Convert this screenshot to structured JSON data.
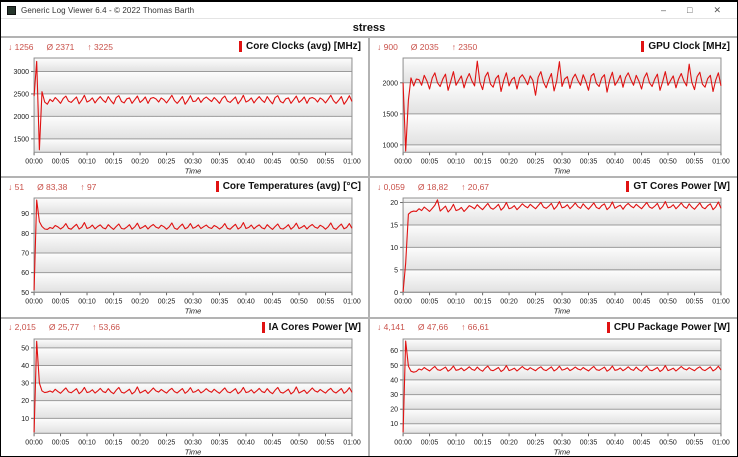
{
  "window": {
    "title": "Generic Log Viewer 6.4 - © 2022 Thomas Barth",
    "controls": {
      "minimize": "–",
      "maximize": "□",
      "close": "✕"
    }
  },
  "header": {
    "title": "stress"
  },
  "colors": {
    "accent_red": "#e01212",
    "stats_red": "#c9514a",
    "grid_line": "#9b9b9b",
    "divider": "#b3b3b3"
  },
  "axis": {
    "time_label": "Time",
    "x_ticks": [
      "00:00",
      "00:05",
      "00:10",
      "00:15",
      "00:20",
      "00:25",
      "00:30",
      "00:35",
      "00:40",
      "00:45",
      "00:50",
      "00:55",
      "01:00"
    ]
  },
  "chart_data": [
    {
      "type": "line",
      "title": "Core Clocks (avg) [MHz]",
      "stats": {
        "min": "↓ 1256",
        "avg": "Ø 2371",
        "max": "↑ 3225"
      },
      "ylim": [
        1200,
        3300
      ],
      "yticks": [
        1500,
        2000,
        2500,
        3000
      ],
      "x_range_minutes": [
        0,
        60
      ],
      "values": [
        2450,
        3225,
        1256,
        2550,
        2320,
        2270,
        2380,
        2330,
        2420,
        2360,
        2290,
        2400,
        2450,
        2340,
        2310,
        2370,
        2430,
        2280,
        2360,
        2470,
        2320,
        2350,
        2410,
        2300,
        2380,
        2440,
        2360,
        2310,
        2440,
        2350,
        2280,
        2420,
        2460,
        2330,
        2300,
        2390,
        2410,
        2290,
        2370,
        2450,
        2310,
        2360,
        2430,
        2290,
        2400,
        2420,
        2390,
        2320,
        2410,
        2370,
        2300,
        2380,
        2470,
        2350,
        2290,
        2360,
        2440,
        2270,
        2350,
        2460,
        2330,
        2340,
        2420,
        2310,
        2390,
        2430,
        2380,
        2330,
        2420,
        2360,
        2290,
        2400,
        2450,
        2340,
        2310,
        2370,
        2430,
        2280,
        2360,
        2470,
        2320,
        2350,
        2410,
        2300,
        2380,
        2440,
        2360,
        2310,
        2440,
        2350,
        2280,
        2420,
        2460,
        2330,
        2300,
        2390,
        2410,
        2290,
        2370,
        2450,
        2310,
        2360,
        2430,
        2290,
        2400,
        2420,
        2390,
        2320,
        2410,
        2370,
        2300,
        2380,
        2470,
        2350,
        2290,
        2360,
        2440,
        2270,
        2350,
        2460,
        2330
      ]
    },
    {
      "type": "line",
      "title": "GPU Clock [MHz]",
      "stats": {
        "min": "↓ 900",
        "avg": "Ø 2035",
        "max": "↑ 2350"
      },
      "ylim": [
        880,
        2400
      ],
      "yticks": [
        1000,
        1500,
        2000
      ],
      "x_range_minutes": [
        0,
        60
      ],
      "values": [
        2000,
        900,
        1720,
        2080,
        1950,
        2060,
        2050,
        1960,
        2120,
        2030,
        1900,
        2080,
        2160,
        2000,
        1940,
        2060,
        2140,
        1880,
        2020,
        2180,
        1960,
        2040,
        2110,
        1920,
        2060,
        2150,
        2030,
        1950,
        2350,
        2010,
        1890,
        2100,
        2170,
        1980,
        1930,
        2070,
        2120,
        1860,
        2040,
        2160,
        1950,
        2050,
        2090,
        1900,
        2080,
        2130,
        2060,
        1970,
        2110,
        2040,
        1800,
        2090,
        2180,
        2010,
        1920,
        2050,
        2150,
        1870,
        2030,
        2340,
        1940,
        2060,
        2100,
        1910,
        2070,
        2140,
        2040,
        1960,
        2130,
        2020,
        1880,
        2110,
        2150,
        1990,
        1940,
        2080,
        2130,
        1850,
        2050,
        2170,
        1960,
        2030,
        2120,
        1930,
        2090,
        2160,
        2050,
        1960,
        2120,
        2030,
        1900,
        2080,
        2160,
        2000,
        1940,
        2060,
        2140,
        1880,
        2020,
        2180,
        1960,
        2040,
        2110,
        1920,
        2060,
        2150,
        2030,
        1950,
        2300,
        2010,
        1890,
        2100,
        2170,
        1980,
        1930,
        2070,
        2120,
        1860,
        2040,
        2160,
        1950
      ]
    },
    {
      "type": "line",
      "title": "Core Temperatures (avg) [°C]",
      "stats": {
        "min": "↓ 51",
        "avg": "Ø 83,38",
        "max": "↑ 97"
      },
      "ylim": [
        50,
        98
      ],
      "yticks": [
        50,
        60,
        70,
        80,
        90
      ],
      "x_range_minutes": [
        0,
        60
      ],
      "values": [
        51,
        97,
        86,
        83.5,
        82.2,
        82,
        83,
        82.5,
        84,
        83.3,
        82.2,
        83.2,
        85,
        82.6,
        82.1,
        83.4,
        84.6,
        82.2,
        83.1,
        85.5,
        82.5,
        83,
        84.2,
        82.3,
        83.5,
        84.3,
        82.8,
        82.3,
        84.4,
        83.1,
        82,
        83.5,
        84.8,
        82.5,
        82.2,
        83.2,
        84.4,
        82.1,
        83.3,
        85.2,
        82.4,
        83.1,
        84,
        82.2,
        83.6,
        84.5,
        83.2,
        82.6,
        84.1,
        83.4,
        82.1,
        83.3,
        85.3,
        82.7,
        82,
        83.5,
        84.7,
        82.3,
        83,
        85,
        82.6,
        83.2,
        84.3,
        82.4,
        83.4,
        84.2,
        83,
        82.5,
        84,
        83.3,
        82.2,
        83.2,
        85,
        82.6,
        82.1,
        83.4,
        84.6,
        82.2,
        83.1,
        85.5,
        82.5,
        83,
        84.2,
        82.3,
        83.5,
        84.3,
        82.8,
        82.3,
        84.4,
        83.1,
        82,
        83.5,
        84.8,
        82.5,
        82.2,
        83.2,
        84.4,
        82.1,
        83.3,
        85.2,
        82.4,
        83.1,
        84,
        82.2,
        83.6,
        84.5,
        83.2,
        82.6,
        84.1,
        83.4,
        82.1,
        83.3,
        85.3,
        82.7,
        82,
        83.5,
        84.7,
        82.3,
        83,
        85,
        82.6
      ]
    },
    {
      "type": "line",
      "title": "GT Cores Power [W]",
      "stats": {
        "min": "↓ 0,059",
        "avg": "Ø 18,82",
        "max": "↑ 20,67"
      },
      "ylim": [
        0,
        21
      ],
      "yticks": [
        0,
        5,
        10,
        15,
        20
      ],
      "x_range_minutes": [
        0,
        60
      ],
      "values": [
        0.06,
        6.5,
        17.4,
        17.9,
        18.1,
        18,
        18.6,
        18.2,
        19,
        18.5,
        18,
        18.7,
        19.4,
        20.6,
        18.1,
        18.6,
        19.2,
        17.9,
        18.5,
        19.6,
        18.2,
        18.4,
        18.9,
        18,
        18.6,
        19.3,
        19,
        18.6,
        19.5,
        18.9,
        18.4,
        19.1,
        19.8,
        18.8,
        18.5,
        19,
        19.6,
        18.3,
        18.9,
        20,
        18.6,
        18.8,
        19.3,
        18.4,
        19,
        19.7,
        19.2,
        18.8,
        19.6,
        19.1,
        18.6,
        19.3,
        20,
        19,
        18.7,
        19.2,
        19.8,
        18.5,
        19.1,
        20.2,
        18.8,
        19,
        19.5,
        18.6,
        19.2,
        19.9,
        19.1,
        18.7,
        19.7,
        19,
        18.5,
        19.2,
        19.9,
        18.9,
        18.6,
        19.3,
        19.7,
        18.4,
        19,
        20.1,
        18.7,
        19.1,
        19.4,
        18.5,
        19.3,
        19.8,
        19.2,
        18.8,
        19.6,
        19.1,
        18.6,
        19.3,
        20,
        19,
        18.7,
        19.2,
        19.8,
        18.5,
        19.1,
        20.2,
        18.8,
        19,
        19.5,
        18.6,
        19.2,
        19.9,
        19.1,
        18.7,
        19.7,
        19,
        18.5,
        19.2,
        19.9,
        18.9,
        18.6,
        19.3,
        19.7,
        18.4,
        19,
        20.1,
        18.7
      ]
    },
    {
      "type": "line",
      "title": "IA Cores Power [W]",
      "stats": {
        "min": "↓ 2,015",
        "avg": "Ø 25,77",
        "max": "↑ 53,66"
      },
      "ylim": [
        1.5,
        55
      ],
      "yticks": [
        10,
        20,
        30,
        40,
        50
      ],
      "x_range_minutes": [
        0,
        60
      ],
      "values": [
        2,
        53.7,
        30,
        25.5,
        24.6,
        24.9,
        25.5,
        24.8,
        26.5,
        25.2,
        24.2,
        25.8,
        27.2,
        25,
        24.5,
        25.6,
        26.8,
        24,
        25.2,
        27.5,
        24.6,
        25,
        26.2,
        24.3,
        25.5,
        27,
        25.2,
        24.6,
        26.8,
        25,
        24,
        26,
        27.5,
        24.8,
        24.3,
        25.4,
        26.5,
        23.8,
        25,
        27.8,
        24.4,
        25.1,
        26,
        24.1,
        25.6,
        27.2,
        25.6,
        24.9,
        26.4,
        25.3,
        24.3,
        25.9,
        27,
        25.1,
        24.4,
        25.7,
        26.9,
        24.2,
        25.3,
        27.4,
        24.7,
        25.2,
        26.3,
        24.4,
        25.4,
        26.8,
        25.5,
        24.8,
        26.5,
        25.2,
        24.2,
        25.8,
        27.2,
        25,
        24.5,
        25.6,
        26.8,
        24,
        25.2,
        27.5,
        24.6,
        25,
        26.2,
        24.3,
        25.5,
        27,
        25.2,
        24.6,
        26.8,
        25,
        24,
        26,
        27.5,
        24.8,
        24.3,
        25.4,
        26.5,
        23.8,
        25,
        27.8,
        24.4,
        25.1,
        26,
        24.1,
        25.6,
        27.2,
        25.6,
        24.9,
        26.4,
        25.3,
        24.3,
        25.9,
        27,
        25.1,
        24.4,
        25.7,
        26.9,
        24.2,
        25.3,
        27.4,
        24.7
      ]
    },
    {
      "type": "line",
      "title": "CPU Package Power [W]",
      "stats": {
        "min": "↓ 4,141",
        "avg": "Ø 47,66",
        "max": "↑ 66,61"
      },
      "ylim": [
        3.5,
        68
      ],
      "yticks": [
        10,
        20,
        30,
        40,
        50,
        60
      ],
      "x_range_minutes": [
        0,
        60
      ],
      "values": [
        4.1,
        66.6,
        49.5,
        46,
        45.3,
        45.8,
        47.5,
        46.8,
        48.5,
        47.2,
        46.2,
        47.8,
        49.2,
        47,
        46.5,
        47.6,
        48.8,
        46,
        47.2,
        49.5,
        46.6,
        47,
        48.2,
        46.3,
        47.5,
        49,
        47.2,
        46.5,
        48.8,
        47,
        46,
        48,
        49.5,
        46.8,
        46.3,
        47.4,
        48.5,
        45.8,
        47,
        49.8,
        46.4,
        47.1,
        48,
        46.1,
        47.6,
        49.2,
        47.6,
        46.9,
        48.4,
        47.3,
        46.3,
        47.9,
        49,
        47.1,
        46.4,
        47.7,
        48.9,
        46.2,
        47.3,
        49.4,
        46.7,
        47.2,
        48.3,
        46.4,
        47.4,
        48.8,
        47.5,
        46.8,
        48.5,
        47.2,
        46.2,
        47.8,
        49.2,
        47,
        46.5,
        47.6,
        48.8,
        46,
        47.2,
        49.5,
        46.6,
        47,
        48.2,
        46.3,
        47.5,
        49,
        47.2,
        46.5,
        48.8,
        47,
        46,
        48,
        49.5,
        46.8,
        46.3,
        47.4,
        48.5,
        45.8,
        47,
        49.8,
        46.4,
        47.1,
        48,
        46.1,
        47.6,
        49.2,
        47.6,
        46.9,
        48.4,
        47.3,
        46.3,
        47.9,
        49,
        47.1,
        46.4,
        47.7,
        48.9,
        46.2,
        47.3,
        49.4,
        46.7
      ]
    }
  ]
}
